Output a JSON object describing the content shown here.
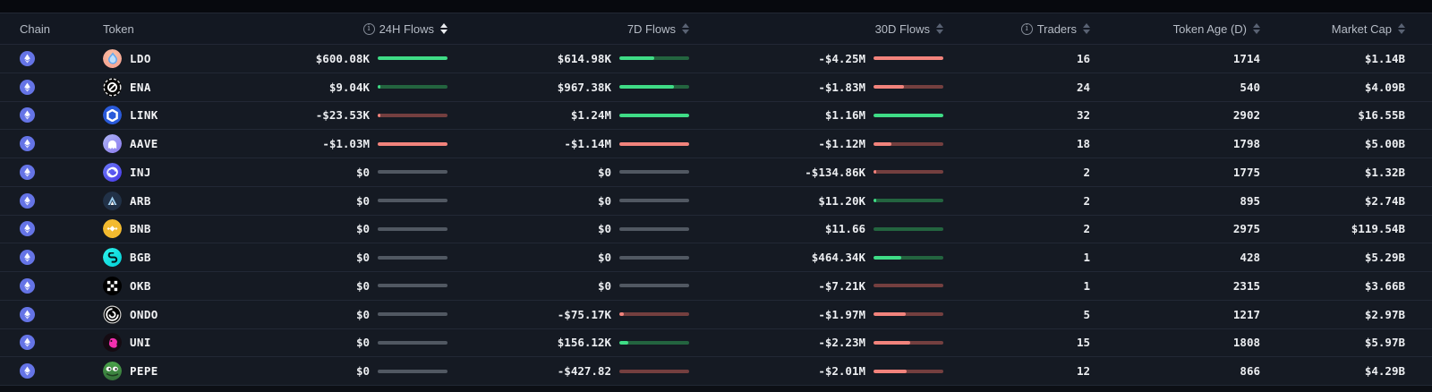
{
  "header": {
    "columns": [
      {
        "key": "chain",
        "label": "Chain",
        "info": false,
        "sortable": false,
        "sort_active": false
      },
      {
        "key": "token",
        "label": "Token",
        "info": false,
        "sortable": false,
        "sort_active": false
      },
      {
        "key": "flow24h",
        "label": "24H Flows",
        "info": true,
        "sortable": true,
        "sort_active": true
      },
      {
        "key": "flow7d",
        "label": "7D Flows",
        "info": false,
        "sortable": true,
        "sort_active": false
      },
      {
        "key": "flow30d",
        "label": "30D Flows",
        "info": false,
        "sortable": true,
        "sort_active": false
      },
      {
        "key": "traders",
        "label": "Traders",
        "info": true,
        "sortable": true,
        "sort_active": false
      },
      {
        "key": "age",
        "label": "Token Age (D)",
        "info": false,
        "sortable": true,
        "sort_active": false
      },
      {
        "key": "mcap",
        "label": "Market Cap",
        "info": false,
        "sortable": true,
        "sort_active": false
      }
    ]
  },
  "colors": {
    "row_bg": "#151a23",
    "header_bg": "#131822",
    "separator": "#222835",
    "flow_positive_fill": "#3fdc86",
    "flow_positive_track": "#23643f",
    "flow_negative_fill": "#f2837c",
    "flow_negative_track": "#743f3f",
    "flow_zero_track": "#515862",
    "chain_icon_bg": "#6574e6"
  },
  "rows": [
    {
      "chain": "ethereum",
      "token": "LDO",
      "icon": "ldo-token-icon",
      "flow24h": {
        "text": "$600.08K",
        "dir": "pos",
        "fill_pct": 100
      },
      "flow7d": {
        "text": "$614.98K",
        "dir": "pos",
        "fill_pct": 50
      },
      "flow30d": {
        "text": "-$4.25M",
        "dir": "neg",
        "fill_pct": 100
      },
      "traders": "16",
      "age": "1714",
      "mcap": "$1.14B"
    },
    {
      "chain": "ethereum",
      "token": "ENA",
      "icon": "ena-token-icon",
      "flow24h": {
        "text": "$9.04K",
        "dir": "pos",
        "fill_pct": 2
      },
      "flow7d": {
        "text": "$967.38K",
        "dir": "pos",
        "fill_pct": 78
      },
      "flow30d": {
        "text": "-$1.83M",
        "dir": "neg",
        "fill_pct": 43
      },
      "traders": "24",
      "age": "540",
      "mcap": "$4.09B"
    },
    {
      "chain": "ethereum",
      "token": "LINK",
      "icon": "link-token-icon",
      "flow24h": {
        "text": "-$23.53K",
        "dir": "neg",
        "fill_pct": 3
      },
      "flow7d": {
        "text": "$1.24M",
        "dir": "pos",
        "fill_pct": 100
      },
      "flow30d": {
        "text": "$1.16M",
        "dir": "pos",
        "fill_pct": 100
      },
      "traders": "32",
      "age": "2902",
      "mcap": "$16.55B"
    },
    {
      "chain": "ethereum",
      "token": "AAVE",
      "icon": "aave-token-icon",
      "flow24h": {
        "text": "-$1.03M",
        "dir": "neg",
        "fill_pct": 100
      },
      "flow7d": {
        "text": "-$1.14M",
        "dir": "neg",
        "fill_pct": 100
      },
      "flow30d": {
        "text": "-$1.12M",
        "dir": "neg",
        "fill_pct": 26
      },
      "traders": "18",
      "age": "1798",
      "mcap": "$5.00B"
    },
    {
      "chain": "ethereum",
      "token": "INJ",
      "icon": "inj-token-icon",
      "flow24h": {
        "text": "$0",
        "dir": "zero",
        "fill_pct": 0
      },
      "flow7d": {
        "text": "$0",
        "dir": "zero",
        "fill_pct": 0
      },
      "flow30d": {
        "text": "-$134.86K",
        "dir": "neg",
        "fill_pct": 3
      },
      "traders": "2",
      "age": "1775",
      "mcap": "$1.32B"
    },
    {
      "chain": "ethereum",
      "token": "ARB",
      "icon": "arb-token-icon",
      "flow24h": {
        "text": "$0",
        "dir": "zero",
        "fill_pct": 0
      },
      "flow7d": {
        "text": "$0",
        "dir": "zero",
        "fill_pct": 0
      },
      "flow30d": {
        "text": "$11.20K",
        "dir": "pos",
        "fill_pct": 1
      },
      "traders": "2",
      "age": "895",
      "mcap": "$2.74B"
    },
    {
      "chain": "ethereum",
      "token": "BNB",
      "icon": "bnb-token-icon",
      "flow24h": {
        "text": "$0",
        "dir": "zero",
        "fill_pct": 0
      },
      "flow7d": {
        "text": "$0",
        "dir": "zero",
        "fill_pct": 0
      },
      "flow30d": {
        "text": "$11.66",
        "dir": "pos",
        "fill_pct": 0
      },
      "traders": "2",
      "age": "2975",
      "mcap": "$119.54B"
    },
    {
      "chain": "ethereum",
      "token": "BGB",
      "icon": "bgb-token-icon",
      "flow24h": {
        "text": "$0",
        "dir": "zero",
        "fill_pct": 0
      },
      "flow7d": {
        "text": "$0",
        "dir": "zero",
        "fill_pct": 0
      },
      "flow30d": {
        "text": "$464.34K",
        "dir": "pos",
        "fill_pct": 40
      },
      "traders": "1",
      "age": "428",
      "mcap": "$5.29B"
    },
    {
      "chain": "ethereum",
      "token": "OKB",
      "icon": "okb-token-icon",
      "flow24h": {
        "text": "$0",
        "dir": "zero",
        "fill_pct": 0
      },
      "flow7d": {
        "text": "$0",
        "dir": "zero",
        "fill_pct": 0
      },
      "flow30d": {
        "text": "-$7.21K",
        "dir": "neg",
        "fill_pct": 0
      },
      "traders": "1",
      "age": "2315",
      "mcap": "$3.66B"
    },
    {
      "chain": "ethereum",
      "token": "ONDO",
      "icon": "ondo-token-icon",
      "flow24h": {
        "text": "$0",
        "dir": "zero",
        "fill_pct": 0
      },
      "flow7d": {
        "text": "-$75.17K",
        "dir": "neg",
        "fill_pct": 7
      },
      "flow30d": {
        "text": "-$1.97M",
        "dir": "neg",
        "fill_pct": 46
      },
      "traders": "5",
      "age": "1217",
      "mcap": "$2.97B"
    },
    {
      "chain": "ethereum",
      "token": "UNI",
      "icon": "uni-token-icon",
      "flow24h": {
        "text": "$0",
        "dir": "zero",
        "fill_pct": 0
      },
      "flow7d": {
        "text": "$156.12K",
        "dir": "pos",
        "fill_pct": 13
      },
      "flow30d": {
        "text": "-$2.23M",
        "dir": "neg",
        "fill_pct": 52
      },
      "traders": "15",
      "age": "1808",
      "mcap": "$5.97B"
    },
    {
      "chain": "ethereum",
      "token": "PEPE",
      "icon": "pepe-token-icon",
      "flow24h": {
        "text": "$0",
        "dir": "zero",
        "fill_pct": 0
      },
      "flow7d": {
        "text": "-$427.82",
        "dir": "neg",
        "fill_pct": 0
      },
      "flow30d": {
        "text": "-$2.01M",
        "dir": "neg",
        "fill_pct": 47
      },
      "traders": "12",
      "age": "866",
      "mcap": "$4.29B"
    }
  ]
}
